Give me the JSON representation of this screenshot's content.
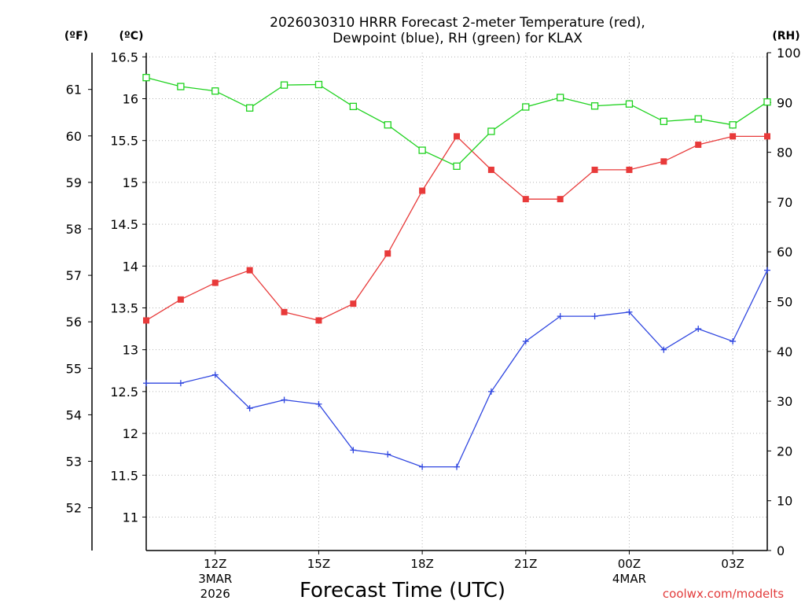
{
  "chart_data": {
    "type": "line",
    "title_line1": "2026030310 HRRR Forecast 2-meter Temperature (red),",
    "title_line2": "Dewpoint (blue), RH (green) for KLAX",
    "units": {
      "fahrenheit": "(ºF)",
      "celsius": "(ºC)",
      "rh": "(RH)"
    },
    "xlabel": "Forecast Time (UTC)",
    "credit": "coolwx.com/modelts",
    "x_hours": [
      0,
      1,
      2,
      3,
      4,
      5,
      6,
      7,
      8,
      9,
      10,
      11,
      12,
      13,
      14,
      15,
      16,
      17,
      18
    ],
    "x_ticks": [
      {
        "hour": 2,
        "label": "12Z",
        "sub1": "3MAR",
        "sub2": "2026"
      },
      {
        "hour": 5,
        "label": "15Z",
        "sub1": "",
        "sub2": ""
      },
      {
        "hour": 8,
        "label": "18Z",
        "sub1": "",
        "sub2": ""
      },
      {
        "hour": 11,
        "label": "21Z",
        "sub1": "",
        "sub2": ""
      },
      {
        "hour": 14,
        "label": "00Z",
        "sub1": "4MAR",
        "sub2": ""
      },
      {
        "hour": 17,
        "label": "03Z",
        "sub1": "",
        "sub2": ""
      }
    ],
    "celsius_axis": {
      "ylim": [
        10.6,
        16.55
      ],
      "ticks": [
        11,
        11.5,
        12,
        12.5,
        13,
        13.5,
        14,
        14.5,
        15,
        15.5,
        16,
        16.5
      ]
    },
    "fahrenheit_ticks": [
      52,
      53,
      54,
      55,
      56,
      57,
      58,
      59,
      60,
      61
    ],
    "rh_axis": {
      "ylim": [
        0,
        100
      ],
      "ticks": [
        0,
        10,
        20,
        30,
        40,
        50,
        60,
        70,
        80,
        90,
        100
      ]
    },
    "grid": true,
    "series": [
      {
        "name": "Temperature",
        "axis": "celsius",
        "color": "#e83a3a",
        "marker": "filled-square",
        "values": [
          13.35,
          13.6,
          13.8,
          13.95,
          13.45,
          13.35,
          13.55,
          14.15,
          14.9,
          15.55,
          15.15,
          14.8,
          14.8,
          15.15,
          15.15,
          15.25,
          15.45,
          15.55,
          15.55
        ]
      },
      {
        "name": "Dewpoint",
        "axis": "celsius",
        "color": "#2f46e0",
        "marker": "plus",
        "values": [
          12.6,
          12.6,
          12.7,
          12.3,
          12.4,
          12.35,
          11.8,
          11.75,
          11.6,
          11.6,
          12.5,
          13.1,
          13.4,
          13.4,
          13.45,
          13.0,
          13.25,
          13.1,
          13.95
        ]
      },
      {
        "name": "RH",
        "axis": "rh",
        "color": "#1ed21e",
        "marker": "open-square",
        "values": [
          95,
          93.2,
          92.3,
          88.9,
          93.5,
          93.6,
          89.2,
          85.5,
          80.4,
          77.2,
          84.2,
          89.1,
          91.0,
          89.3,
          89.7,
          86.2,
          86.7,
          85.5,
          90.1
        ]
      }
    ]
  }
}
